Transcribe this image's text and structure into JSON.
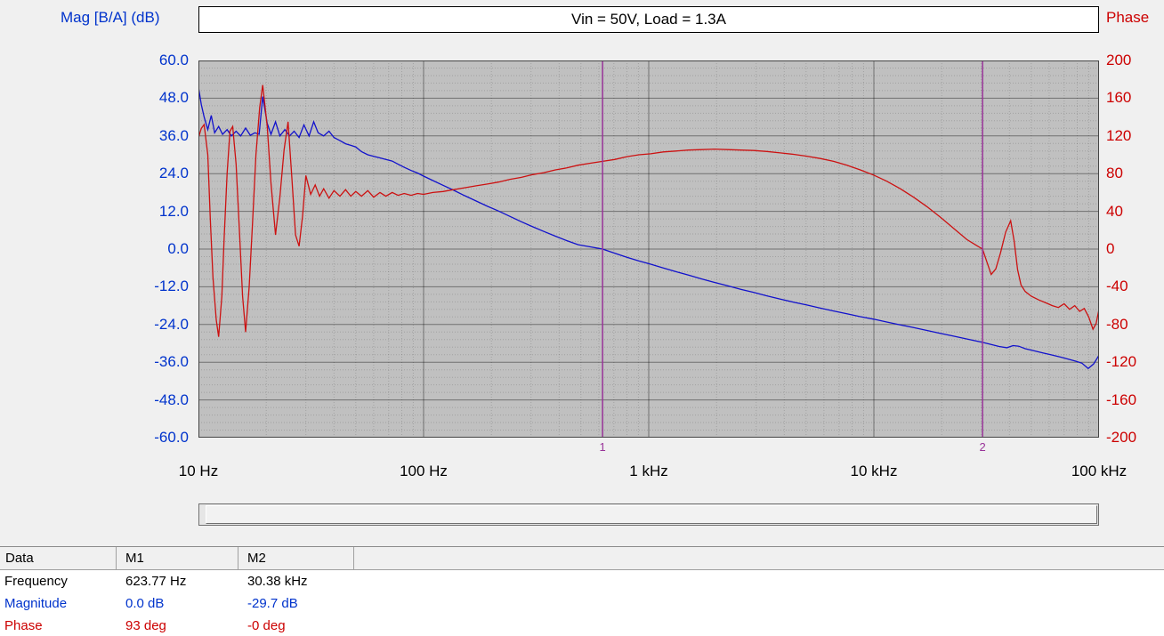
{
  "colors": {
    "mag": "#0033cc",
    "phase": "#cc0000",
    "curve_mag": "#1111cc",
    "curve_phase": "#cc1111",
    "marker": "#993399",
    "plot_bg": "#c0c0c0",
    "grid_minor": "rgba(0,0,0,0.16)",
    "grid_major": "rgba(0,0,0,0.42)"
  },
  "header": {
    "mag_axis_label": "Mag [B/A] (dB)",
    "phase_axis_label": "Phase",
    "title": "Vin = 50V, Load = 1.3A"
  },
  "chart_data": {
    "type": "line",
    "title": "Vin = 50V, Load = 1.3A",
    "x_axis": {
      "scale": "log",
      "min": 10,
      "max": 100000,
      "tick_values": [
        10,
        100,
        1000,
        10000,
        100000
      ],
      "tick_labels": [
        "10 Hz",
        "100 Hz",
        "1 kHz",
        "10 kHz",
        "100 kHz"
      ]
    },
    "y_left": {
      "label": "Mag [B/A] (dB)",
      "min": -60,
      "max": 60,
      "ticks": [
        60,
        48,
        36,
        24,
        12,
        0,
        -12,
        -24,
        -36,
        -48,
        -60
      ],
      "tick_labels": [
        "60.0",
        "48.0",
        "36.0",
        "24.0",
        "12.0",
        "0.0",
        "-12.0",
        "-24.0",
        "-36.0",
        "-48.0",
        "-60.0"
      ],
      "minor_step": 2.4
    },
    "y_right": {
      "label": "Phase",
      "min": -200,
      "max": 200,
      "ticks": [
        200,
        160,
        120,
        80,
        40,
        0,
        -40,
        -80,
        -120,
        -160,
        -200
      ],
      "tick_labels": [
        "200",
        "160",
        "120",
        "80",
        "40",
        "0",
        "-40",
        "-80",
        "-120",
        "-160",
        "-200"
      ]
    },
    "markers": [
      {
        "id": "1",
        "freq_hz": 623.77
      },
      {
        "id": "2",
        "freq_hz": 30380
      }
    ],
    "series": [
      {
        "name": "magnitude_db",
        "axis": "left",
        "points": [
          [
            10,
            51.5
          ],
          [
            10.3,
            46
          ],
          [
            10.6,
            42
          ],
          [
            11,
            38
          ],
          [
            11.4,
            42.5
          ],
          [
            11.8,
            37
          ],
          [
            12.3,
            39
          ],
          [
            12.8,
            36.5
          ],
          [
            13.4,
            38
          ],
          [
            14,
            36
          ],
          [
            14.7,
            37.5
          ],
          [
            15.4,
            36
          ],
          [
            16.2,
            38.5
          ],
          [
            17,
            36.2
          ],
          [
            17.8,
            37
          ],
          [
            18.6,
            36.5
          ],
          [
            19.3,
            48.5
          ],
          [
            20.2,
            40
          ],
          [
            21,
            36.5
          ],
          [
            22,
            40.5
          ],
          [
            23,
            36
          ],
          [
            24.2,
            38
          ],
          [
            25.4,
            36
          ],
          [
            26.6,
            37.5
          ],
          [
            28,
            35.5
          ],
          [
            29.4,
            39.5
          ],
          [
            31,
            36
          ],
          [
            32.5,
            40.5
          ],
          [
            34,
            37
          ],
          [
            36,
            36
          ],
          [
            38,
            37.5
          ],
          [
            40,
            35.5
          ],
          [
            42.5,
            34.5
          ],
          [
            45,
            33.5
          ],
          [
            47.5,
            33
          ],
          [
            50,
            32.5
          ],
          [
            53,
            31
          ],
          [
            56.5,
            30
          ],
          [
            60,
            29.5
          ],
          [
            64,
            29
          ],
          [
            68,
            28.5
          ],
          [
            72.5,
            28
          ],
          [
            77,
            27
          ],
          [
            82,
            26
          ],
          [
            88,
            25
          ],
          [
            94,
            24.2
          ],
          [
            100,
            23.2
          ],
          [
            110,
            21.8
          ],
          [
            122,
            20.3
          ],
          [
            136,
            18.7
          ],
          [
            152,
            17
          ],
          [
            170,
            15.4
          ],
          [
            192,
            13.6
          ],
          [
            215,
            12.1
          ],
          [
            242,
            10.4
          ],
          [
            272,
            8.7
          ],
          [
            305,
            7.1
          ],
          [
            342,
            5.6
          ],
          [
            385,
            4.1
          ],
          [
            432,
            2.7
          ],
          [
            486,
            1.4
          ],
          [
            550,
            0.7
          ],
          [
            623.77,
            0
          ],
          [
            705,
            -1.3
          ],
          [
            800,
            -2.6
          ],
          [
            905,
            -3.8
          ],
          [
            1020,
            -4.8
          ],
          [
            1160,
            -6
          ],
          [
            1320,
            -7.2
          ],
          [
            1500,
            -8.3
          ],
          [
            1720,
            -9.5
          ],
          [
            1960,
            -10.6
          ],
          [
            2240,
            -11.7
          ],
          [
            2560,
            -12.8
          ],
          [
            2930,
            -13.8
          ],
          [
            3350,
            -14.9
          ],
          [
            3840,
            -15.9
          ],
          [
            4400,
            -16.9
          ],
          [
            5040,
            -17.8
          ],
          [
            5780,
            -18.8
          ],
          [
            6620,
            -19.7
          ],
          [
            7590,
            -20.6
          ],
          [
            8700,
            -21.5
          ],
          [
            9970,
            -22.3
          ],
          [
            11400,
            -23.2
          ],
          [
            13100,
            -24.1
          ],
          [
            15000,
            -25
          ],
          [
            17200,
            -25.9
          ],
          [
            19700,
            -26.8
          ],
          [
            22600,
            -27.7
          ],
          [
            25900,
            -28.6
          ],
          [
            30380,
            -29.7
          ],
          [
            33000,
            -30.3
          ],
          [
            36000,
            -31
          ],
          [
            39000,
            -31.4
          ],
          [
            41500,
            -30.7
          ],
          [
            44000,
            -30.9
          ],
          [
            47000,
            -31.7
          ],
          [
            51000,
            -32.3
          ],
          [
            56000,
            -33
          ],
          [
            61000,
            -33.6
          ],
          [
            67000,
            -34.3
          ],
          [
            73000,
            -35
          ],
          [
            79000,
            -35.7
          ],
          [
            84000,
            -36.3
          ],
          [
            89500,
            -38
          ],
          [
            94500,
            -36.6
          ],
          [
            100000,
            -33.8
          ]
        ]
      },
      {
        "name": "phase_deg",
        "axis": "right",
        "points": [
          [
            10,
            118
          ],
          [
            10.3,
            128
          ],
          [
            10.6,
            132
          ],
          [
            11,
            100
          ],
          [
            11.3,
            30
          ],
          [
            11.6,
            -30
          ],
          [
            12,
            -75
          ],
          [
            12.3,
            -93
          ],
          [
            12.7,
            -50
          ],
          [
            13,
            10
          ],
          [
            13.4,
            80
          ],
          [
            13.8,
            125
          ],
          [
            14.2,
            130
          ],
          [
            14.7,
            90
          ],
          [
            15.2,
            20
          ],
          [
            15.7,
            -50
          ],
          [
            16.2,
            -88
          ],
          [
            16.8,
            -40
          ],
          [
            17.4,
            30
          ],
          [
            18,
            100
          ],
          [
            18.7,
            150
          ],
          [
            19.3,
            174
          ],
          [
            20.2,
            130
          ],
          [
            21,
            70
          ],
          [
            22,
            15
          ],
          [
            23,
            55
          ],
          [
            24,
            105
          ],
          [
            25,
            135
          ],
          [
            26,
            75
          ],
          [
            27,
            15
          ],
          [
            28,
            3
          ],
          [
            29,
            35
          ],
          [
            30,
            78
          ],
          [
            31.5,
            58
          ],
          [
            33,
            68
          ],
          [
            34.5,
            56
          ],
          [
            36,
            64
          ],
          [
            38,
            54
          ],
          [
            40,
            62
          ],
          [
            42.5,
            56
          ],
          [
            45,
            63
          ],
          [
            47.5,
            56
          ],
          [
            50,
            61
          ],
          [
            53,
            56
          ],
          [
            56.5,
            62
          ],
          [
            60,
            55
          ],
          [
            64,
            60
          ],
          [
            68,
            56
          ],
          [
            72.5,
            60
          ],
          [
            77,
            57
          ],
          [
            82,
            59
          ],
          [
            88,
            57
          ],
          [
            94,
            59
          ],
          [
            100,
            58
          ],
          [
            110,
            60
          ],
          [
            122,
            61
          ],
          [
            136,
            63
          ],
          [
            152,
            65
          ],
          [
            170,
            67
          ],
          [
            192,
            69
          ],
          [
            215,
            71
          ],
          [
            242,
            74
          ],
          [
            272,
            76
          ],
          [
            305,
            79
          ],
          [
            342,
            81
          ],
          [
            385,
            84
          ],
          [
            432,
            86
          ],
          [
            486,
            89
          ],
          [
            550,
            91
          ],
          [
            623.77,
            93
          ],
          [
            705,
            95
          ],
          [
            800,
            98
          ],
          [
            905,
            100
          ],
          [
            1020,
            101
          ],
          [
            1160,
            103
          ],
          [
            1320,
            104
          ],
          [
            1500,
            105
          ],
          [
            1720,
            105.5
          ],
          [
            1960,
            106
          ],
          [
            2240,
            105.5
          ],
          [
            2560,
            105
          ],
          [
            2930,
            104.5
          ],
          [
            3350,
            103.5
          ],
          [
            3840,
            102
          ],
          [
            4400,
            100.5
          ],
          [
            5040,
            98.5
          ],
          [
            5780,
            96
          ],
          [
            6620,
            93
          ],
          [
            7590,
            89
          ],
          [
            8700,
            84
          ],
          [
            9970,
            78.5
          ],
          [
            11400,
            72
          ],
          [
            13100,
            64
          ],
          [
            15000,
            55
          ],
          [
            17200,
            45
          ],
          [
            19700,
            34
          ],
          [
            22600,
            22
          ],
          [
            25900,
            10
          ],
          [
            28500,
            4
          ],
          [
            30380,
            0
          ],
          [
            31800,
            -14
          ],
          [
            33200,
            -27
          ],
          [
            34800,
            -21
          ],
          [
            36500,
            -4
          ],
          [
            38500,
            18
          ],
          [
            40500,
            30
          ],
          [
            42000,
            8
          ],
          [
            43500,
            -22
          ],
          [
            45000,
            -38
          ],
          [
            47000,
            -45
          ],
          [
            50000,
            -50
          ],
          [
            54000,
            -54
          ],
          [
            58000,
            -57
          ],
          [
            62000,
            -60
          ],
          [
            66000,
            -62
          ],
          [
            70000,
            -58
          ],
          [
            74000,
            -64
          ],
          [
            78000,
            -60
          ],
          [
            82000,
            -66
          ],
          [
            86000,
            -63
          ],
          [
            90000,
            -72
          ],
          [
            94000,
            -85
          ],
          [
            97000,
            -79
          ],
          [
            100000,
            -64
          ]
        ]
      }
    ]
  },
  "table": {
    "headers": [
      "Data",
      "M1",
      "M2"
    ],
    "rows": [
      {
        "label": "Frequency",
        "m1": "623.77 Hz",
        "m2": "30.38 kHz"
      },
      {
        "label": "Magnitude",
        "m1": "0.0 dB",
        "m2": "-29.7 dB"
      },
      {
        "label": "Phase",
        "m1": "93 deg",
        "m2": "-0 deg"
      }
    ]
  }
}
